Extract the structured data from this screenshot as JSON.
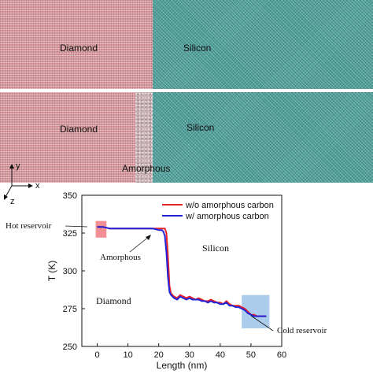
{
  "top_panel": {
    "diamond_label": "Diamond",
    "silicon_label": "Silicon"
  },
  "bottom_panel": {
    "diamond_label": "Diamond",
    "silicon_label": "Silicon",
    "amorphous_label": "Amorphous"
  },
  "axes_glyph": {
    "y": "y",
    "x": "x",
    "z": "z"
  },
  "colors": {
    "diamond": "#d59aa0",
    "silicon": "#4f9e9a",
    "amorphous": "#c9b3b5",
    "red_series": "#e8202a",
    "blue_series": "#1f24d8",
    "hot": "#f07b82",
    "cold": "#9cc3e8"
  },
  "chart_data": {
    "type": "line",
    "xlabel": "Length (nm)",
    "ylabel": "T (K)",
    "xlim": [
      -5,
      60
    ],
    "ylim": [
      250,
      350
    ],
    "xticks": [
      0,
      10,
      20,
      30,
      40,
      50,
      60
    ],
    "yticks": [
      250,
      275,
      300,
      325,
      350
    ],
    "legend_position": "top-right",
    "series": [
      {
        "name": "w/o amorphous carbon",
        "color": "#e8202a",
        "x": [
          0,
          2,
          4,
          6,
          8,
          10,
          12,
          14,
          16,
          18,
          20,
          21,
          21.5,
          22,
          22.5,
          23,
          23.5,
          24,
          25,
          26,
          27,
          28,
          29,
          30,
          31,
          32,
          33,
          34,
          35,
          36,
          37,
          38,
          39,
          40,
          41,
          42,
          43,
          44,
          45,
          46,
          47,
          48,
          49,
          50,
          51,
          52,
          53,
          54,
          55
        ],
        "y": [
          329,
          329,
          328,
          328,
          328,
          328,
          328,
          328,
          328,
          328,
          328,
          328,
          328,
          328,
          325,
          310,
          290,
          285,
          283,
          282,
          284,
          283,
          282,
          283,
          282,
          281,
          282,
          281,
          280,
          280,
          281,
          280,
          279,
          279,
          278,
          280,
          278,
          277,
          277,
          277,
          276,
          275,
          273,
          271,
          271,
          270,
          270,
          270,
          270
        ]
      },
      {
        "name": "w/ amorphous carbon",
        "color": "#1f24d8",
        "x": [
          0,
          2,
          4,
          6,
          8,
          10,
          12,
          14,
          16,
          18,
          20,
          21,
          21.5,
          22,
          22.5,
          23,
          23.5,
          24,
          25,
          26,
          27,
          28,
          29,
          30,
          31,
          32,
          33,
          34,
          35,
          36,
          37,
          38,
          39,
          40,
          41,
          42,
          43,
          44,
          45,
          46,
          47,
          48,
          49,
          50,
          51,
          52,
          53,
          54,
          55
        ],
        "y": [
          329,
          329,
          328,
          328,
          328,
          328,
          328,
          328,
          328,
          328,
          327,
          327,
          326,
          323,
          312,
          296,
          286,
          284,
          282,
          281,
          283,
          282,
          281,
          282,
          281,
          281,
          281,
          280,
          280,
          279,
          280,
          279,
          279,
          278,
          278,
          279,
          277,
          277,
          276,
          276,
          275,
          274,
          272,
          271,
          270,
          270,
          270,
          270,
          270
        ]
      }
    ],
    "annotations": {
      "hot_reservoir": "Hot reservoir",
      "cold_reservoir": "Cold reservoir",
      "amorphous": "Amorphous",
      "silicon": "Silicon",
      "diamond": "Diamond"
    },
    "hot_region": {
      "x": [
        -0.5,
        3
      ],
      "y": [
        322,
        333
      ]
    },
    "cold_region": {
      "x": [
        47,
        56
      ],
      "y": [
        262,
        284
      ]
    }
  }
}
